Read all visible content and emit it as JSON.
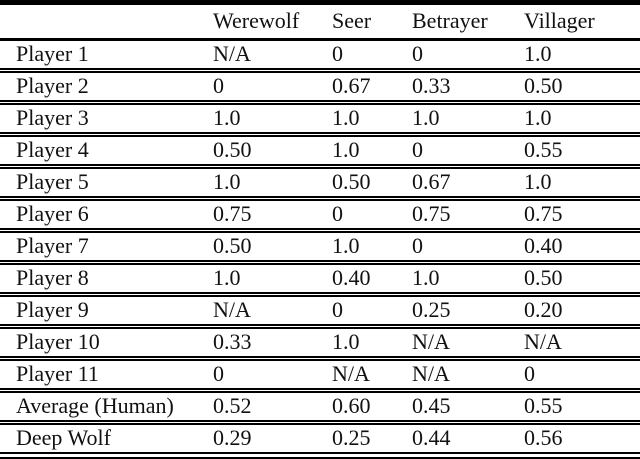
{
  "table": {
    "name": "role-scores-table",
    "columns": [
      "",
      "Werewolf",
      "Seer",
      "Betrayer",
      "Villager"
    ],
    "rows": [
      {
        "label": "Player 1",
        "values": [
          "N/A",
          "0",
          "0",
          "1.0"
        ]
      },
      {
        "label": "Player 2",
        "values": [
          "0",
          "0.67",
          "0.33",
          "0.50"
        ]
      },
      {
        "label": "Player 3",
        "values": [
          "1.0",
          "1.0",
          "1.0",
          "1.0"
        ]
      },
      {
        "label": "Player 4",
        "values": [
          "0.50",
          "1.0",
          "0",
          "0.55"
        ]
      },
      {
        "label": "Player 5",
        "values": [
          "1.0",
          "0.50",
          "0.67",
          "1.0"
        ]
      },
      {
        "label": "Player 6",
        "values": [
          "0.75",
          "0",
          "0.75",
          "0.75"
        ]
      },
      {
        "label": "Player 7",
        "values": [
          "0.50",
          "1.0",
          "0",
          "0.40"
        ]
      },
      {
        "label": "Player 8",
        "values": [
          "1.0",
          "0.40",
          "1.0",
          "0.50"
        ]
      },
      {
        "label": "Player 9",
        "values": [
          "N/A",
          "0",
          "0.25",
          "0.20"
        ]
      },
      {
        "label": "Player 10",
        "values": [
          "0.33",
          "1.0",
          "N/A",
          "N/A"
        ]
      },
      {
        "label": "Player 11",
        "values": [
          "0",
          "N/A",
          "N/A",
          "0"
        ]
      },
      {
        "label": "Average (Human)",
        "values": [
          "0.52",
          "0.60",
          "0.45",
          "0.55"
        ]
      },
      {
        "label": "Deep Wolf",
        "values": [
          "0.29",
          "0.25",
          "0.44",
          "0.56"
        ]
      }
    ]
  }
}
